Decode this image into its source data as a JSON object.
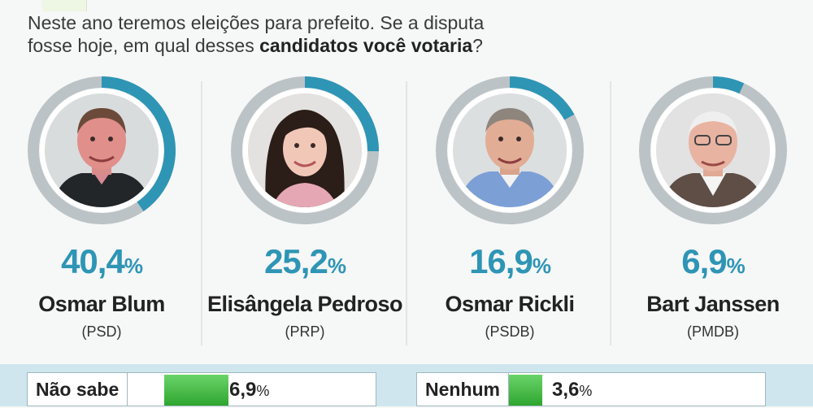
{
  "question": {
    "part1": "Neste ano teremos eleições para prefeito. Se a disputa",
    "part2": "fosse hoje, em qual desses ",
    "part3_bold": "candidatos você votaria",
    "part4": "?"
  },
  "colors": {
    "accent": "#2e95b5",
    "ring_gray": "#bcc3c6",
    "bar_green": "#3ebb3e",
    "band": "#cfe6ee"
  },
  "chart_data": {
    "type": "bar",
    "categories": [
      "Osmar Blum",
      "Elisângela Pedroso",
      "Osmar Rickli",
      "Bart Janssen",
      "Não sabe",
      "Nenhum"
    ],
    "values": [
      40.4,
      25.2,
      16.9,
      6.9,
      6.9,
      3.6
    ],
    "unit": "%"
  },
  "candidates": [
    {
      "value": 40.4,
      "number": "40,4",
      "unit": "%",
      "name": "Osmar Blum",
      "party": "(PSD)",
      "photo": "man-portrait-dark-hair"
    },
    {
      "value": 25.2,
      "number": "25,2",
      "unit": "%",
      "name": "Elisângela Pedroso",
      "party": "(PRP)",
      "photo": "woman-portrait-long-hair"
    },
    {
      "value": 16.9,
      "number": "16,9",
      "unit": "%",
      "name": "Osmar Rickli",
      "party": "(PSDB)",
      "photo": "older-man-portrait"
    },
    {
      "value": 6.9,
      "number": "6,9",
      "unit": "%",
      "name": "Bart Janssen",
      "party": "(PMDB)",
      "photo": "older-man-glasses-portrait"
    }
  ],
  "options": [
    {
      "label": "Não sabe",
      "value": 6.9,
      "number": "6,9",
      "unit": "%"
    },
    {
      "label": "Nenhum",
      "value": 3.6,
      "number": "3,6",
      "unit": "%"
    }
  ]
}
